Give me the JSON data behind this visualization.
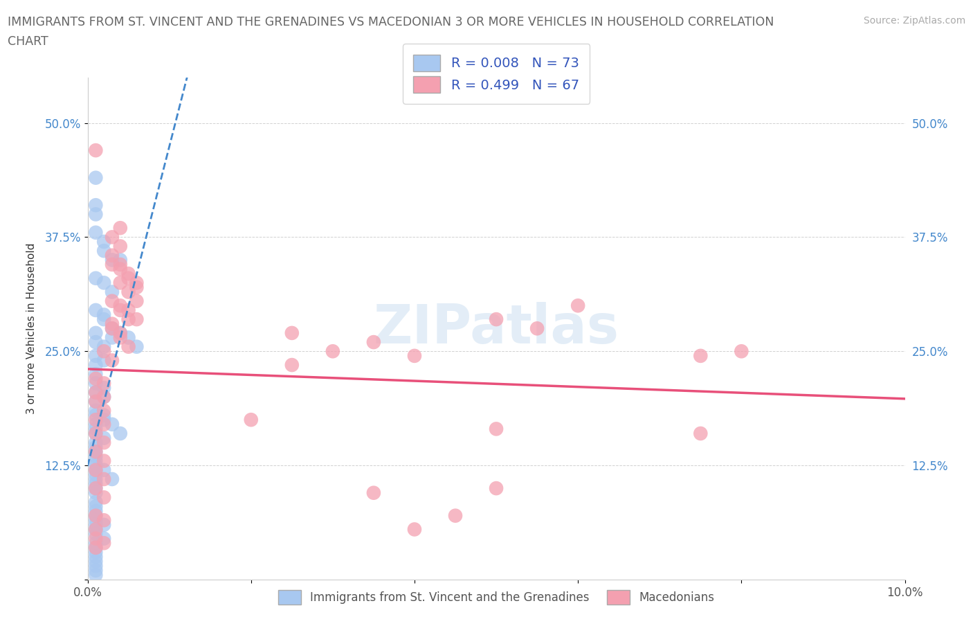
{
  "title_line1": "IMMIGRANTS FROM ST. VINCENT AND THE GRENADINES VS MACEDONIAN 3 OR MORE VEHICLES IN HOUSEHOLD CORRELATION",
  "title_line2": "CHART",
  "source_text": "Source: ZipAtlas.com",
  "ylabel": "3 or more Vehicles in Household",
  "xmin": 0.0,
  "xmax": 0.1,
  "ymin": 0.0,
  "ymax": 0.55,
  "blue_color": "#a8c8f0",
  "pink_color": "#f4a0b0",
  "blue_line_color": "#4488cc",
  "pink_line_color": "#e8507a",
  "legend_color": "#3355bb",
  "watermark_text": "ZIPatlas",
  "legend_label_blue": "Immigrants from St. Vincent and the Grenadines",
  "legend_label_pink": "Macedonians",
  "blue_scatter": [
    [
      0.001,
      0.44
    ],
    [
      0.001,
      0.41
    ],
    [
      0.001,
      0.4
    ],
    [
      0.001,
      0.38
    ],
    [
      0.002,
      0.37
    ],
    [
      0.002,
      0.36
    ],
    [
      0.003,
      0.35
    ],
    [
      0.004,
      0.35
    ],
    [
      0.001,
      0.33
    ],
    [
      0.001,
      0.295
    ],
    [
      0.002,
      0.29
    ],
    [
      0.001,
      0.27
    ],
    [
      0.003,
      0.265
    ],
    [
      0.001,
      0.26
    ],
    [
      0.002,
      0.255
    ],
    [
      0.001,
      0.245
    ],
    [
      0.002,
      0.24
    ],
    [
      0.001,
      0.235
    ],
    [
      0.001,
      0.225
    ],
    [
      0.001,
      0.215
    ],
    [
      0.002,
      0.21
    ],
    [
      0.001,
      0.205
    ],
    [
      0.002,
      0.2
    ],
    [
      0.001,
      0.195
    ],
    [
      0.001,
      0.185
    ],
    [
      0.001,
      0.18
    ],
    [
      0.002,
      0.175
    ],
    [
      0.001,
      0.17
    ],
    [
      0.001,
      0.165
    ],
    [
      0.001,
      0.16
    ],
    [
      0.002,
      0.155
    ],
    [
      0.001,
      0.15
    ],
    [
      0.001,
      0.145
    ],
    [
      0.001,
      0.14
    ],
    [
      0.001,
      0.135
    ],
    [
      0.001,
      0.13
    ],
    [
      0.001,
      0.125
    ],
    [
      0.001,
      0.12
    ],
    [
      0.001,
      0.115
    ],
    [
      0.001,
      0.11
    ],
    [
      0.001,
      0.105
    ],
    [
      0.001,
      0.1
    ],
    [
      0.001,
      0.095
    ],
    [
      0.001,
      0.085
    ],
    [
      0.001,
      0.08
    ],
    [
      0.001,
      0.075
    ],
    [
      0.001,
      0.07
    ],
    [
      0.001,
      0.065
    ],
    [
      0.001,
      0.06
    ],
    [
      0.001,
      0.055
    ],
    [
      0.001,
      0.05
    ],
    [
      0.002,
      0.045
    ],
    [
      0.001,
      0.04
    ],
    [
      0.001,
      0.035
    ],
    [
      0.001,
      0.03
    ],
    [
      0.001,
      0.025
    ],
    [
      0.001,
      0.02
    ],
    [
      0.001,
      0.015
    ],
    [
      0.001,
      0.01
    ],
    [
      0.001,
      0.005
    ],
    [
      0.005,
      0.265
    ],
    [
      0.006,
      0.255
    ],
    [
      0.002,
      0.285
    ],
    [
      0.003,
      0.275
    ],
    [
      0.004,
      0.27
    ],
    [
      0.002,
      0.325
    ],
    [
      0.003,
      0.315
    ],
    [
      0.002,
      0.18
    ],
    [
      0.003,
      0.17
    ],
    [
      0.004,
      0.16
    ],
    [
      0.002,
      0.12
    ],
    [
      0.003,
      0.11
    ],
    [
      0.002,
      0.06
    ]
  ],
  "pink_scatter": [
    [
      0.001,
      0.47
    ],
    [
      0.003,
      0.28
    ],
    [
      0.004,
      0.27
    ],
    [
      0.002,
      0.25
    ],
    [
      0.003,
      0.24
    ],
    [
      0.001,
      0.22
    ],
    [
      0.002,
      0.215
    ],
    [
      0.001,
      0.205
    ],
    [
      0.002,
      0.2
    ],
    [
      0.001,
      0.195
    ],
    [
      0.002,
      0.185
    ],
    [
      0.001,
      0.175
    ],
    [
      0.002,
      0.17
    ],
    [
      0.001,
      0.16
    ],
    [
      0.002,
      0.15
    ],
    [
      0.001,
      0.14
    ],
    [
      0.002,
      0.13
    ],
    [
      0.001,
      0.12
    ],
    [
      0.002,
      0.11
    ],
    [
      0.001,
      0.1
    ],
    [
      0.002,
      0.09
    ],
    [
      0.001,
      0.07
    ],
    [
      0.002,
      0.065
    ],
    [
      0.001,
      0.055
    ],
    [
      0.001,
      0.045
    ],
    [
      0.002,
      0.04
    ],
    [
      0.001,
      0.035
    ],
    [
      0.003,
      0.275
    ],
    [
      0.004,
      0.265
    ],
    [
      0.005,
      0.255
    ],
    [
      0.004,
      0.3
    ],
    [
      0.005,
      0.295
    ],
    [
      0.006,
      0.285
    ],
    [
      0.003,
      0.305
    ],
    [
      0.004,
      0.295
    ],
    [
      0.005,
      0.285
    ],
    [
      0.004,
      0.325
    ],
    [
      0.005,
      0.315
    ],
    [
      0.006,
      0.305
    ],
    [
      0.005,
      0.335
    ],
    [
      0.006,
      0.325
    ],
    [
      0.003,
      0.345
    ],
    [
      0.004,
      0.34
    ],
    [
      0.005,
      0.33
    ],
    [
      0.006,
      0.32
    ],
    [
      0.003,
      0.355
    ],
    [
      0.004,
      0.345
    ],
    [
      0.003,
      0.375
    ],
    [
      0.004,
      0.365
    ],
    [
      0.004,
      0.385
    ],
    [
      0.035,
      0.26
    ],
    [
      0.05,
      0.285
    ],
    [
      0.055,
      0.275
    ],
    [
      0.06,
      0.3
    ],
    [
      0.04,
      0.245
    ],
    [
      0.075,
      0.245
    ],
    [
      0.075,
      0.16
    ],
    [
      0.08,
      0.25
    ],
    [
      0.05,
      0.165
    ],
    [
      0.035,
      0.095
    ],
    [
      0.04,
      0.055
    ],
    [
      0.045,
      0.07
    ],
    [
      0.05,
      0.1
    ],
    [
      0.02,
      0.175
    ],
    [
      0.025,
      0.235
    ],
    [
      0.025,
      0.27
    ],
    [
      0.03,
      0.25
    ]
  ]
}
